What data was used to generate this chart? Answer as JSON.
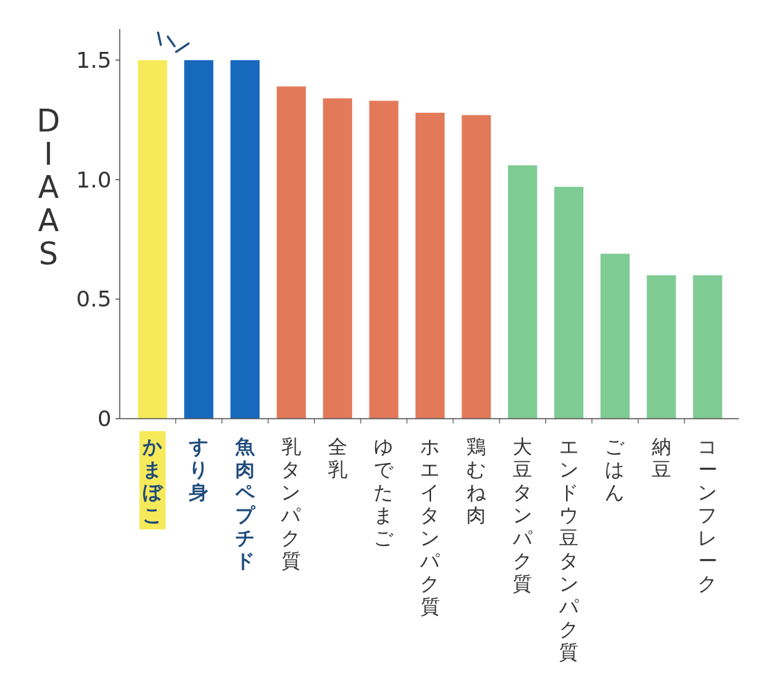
{
  "chart_data": {
    "type": "bar",
    "ylabel": "DIAAS",
    "categories": [
      "かまぼこ",
      "すり身",
      "魚肉ペプチド",
      "乳タンパク質",
      "全乳",
      "ゆでたまご",
      "ホエイタンパク質",
      "鶏むね肉",
      "大豆タンパク質",
      "エンドウ豆タンパク質",
      "ごはん",
      "納豆",
      "コーンフレーク"
    ],
    "values": [
      1.5,
      1.5,
      1.5,
      1.39,
      1.34,
      1.33,
      1.28,
      1.27,
      1.06,
      0.97,
      0.69,
      0.6,
      0.6
    ],
    "colors": [
      "#f7ea5a",
      "#1769be",
      "#1769be",
      "#e27a5a",
      "#e27a5a",
      "#e27a5a",
      "#e27a5a",
      "#e27a5a",
      "#7ecb93",
      "#7ecb93",
      "#7ecb93",
      "#7ecb93",
      "#7ecb93"
    ],
    "ylim": [
      0,
      1.63
    ],
    "yticks": [
      0,
      0.5,
      {
        "value": 1,
        "label": "1.0"
      },
      1.5
    ],
    "grid": false
  }
}
